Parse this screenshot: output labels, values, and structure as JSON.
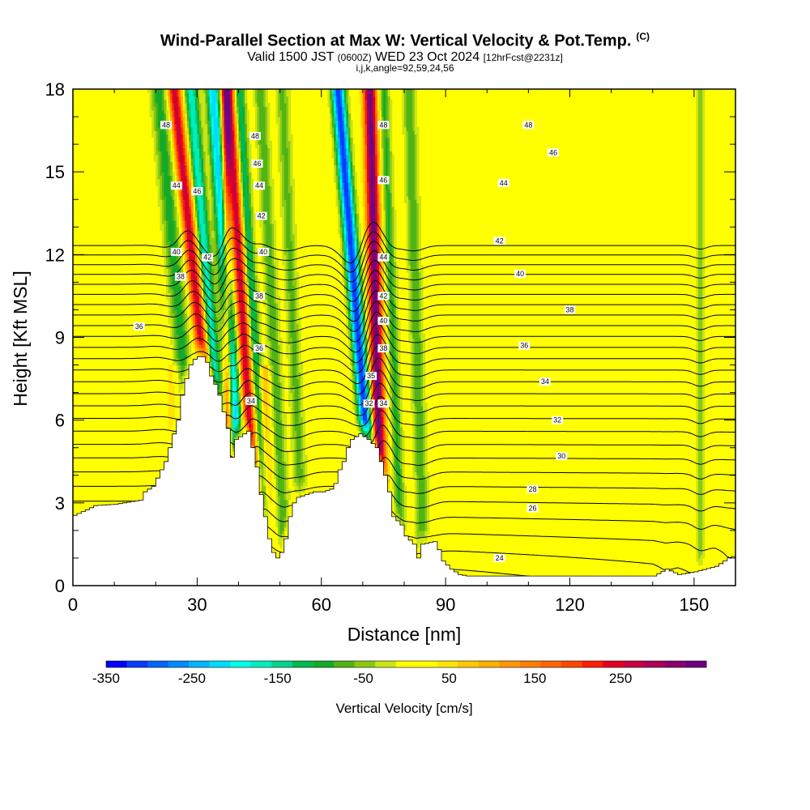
{
  "header": {
    "title": "Wind-Parallel Section at Max W: Vertical Velocity & Pot.Temp.",
    "copyright": "(C)",
    "valid_prefix": "Valid 1500 JST",
    "valid_utc": "(0600Z)",
    "valid_date": "WED 23 Oct 2024",
    "forecast": "[12hrFcst@2231z]",
    "params": "i,j,k,angle=92,59,24,56"
  },
  "chart_data": {
    "type": "heatmap",
    "xlabel": "Distance [nm]",
    "ylabel": "Height [Kft MSL]",
    "xlim": [
      0,
      160
    ],
    "ylim": [
      0,
      18
    ],
    "x_ticks": [
      0,
      30,
      60,
      90,
      120,
      150
    ],
    "y_ticks": [
      0,
      3,
      6,
      9,
      12,
      15,
      18
    ],
    "colorbar": {
      "label": "Vertical Velocity [cm/s]",
      "range": [
        -350,
        350
      ],
      "tick_values": [
        -350,
        -250,
        -150,
        -50,
        50,
        150,
        250
      ],
      "colors": [
        "#0000ff",
        "#0a3cff",
        "#0064ff",
        "#008cff",
        "#00b4ff",
        "#00dcff",
        "#00ffe6",
        "#00eebe",
        "#00d28c",
        "#00b850",
        "#14aa28",
        "#50b414",
        "#8cc814",
        "#c8e614",
        "#ffff00",
        "#ffff00",
        "#ffe600",
        "#ffc800",
        "#ffb000",
        "#ff9600",
        "#ff7d00",
        "#ff6400",
        "#ff4600",
        "#ff1e00",
        "#e6001e",
        "#c80041",
        "#aa005a",
        "#8c006e",
        "#6e0082"
      ]
    },
    "terrain": [
      [
        0,
        2.55
      ],
      [
        3,
        2.75
      ],
      [
        5,
        2.9
      ],
      [
        10,
        2.95
      ],
      [
        16,
        3.1
      ],
      [
        17,
        3.4
      ],
      [
        19,
        3.6
      ],
      [
        21,
        4.2
      ],
      [
        22,
        4.5
      ],
      [
        23,
        5.0
      ],
      [
        24,
        5.5
      ],
      [
        25,
        6.0
      ],
      [
        26,
        6.9
      ],
      [
        27,
        7.5
      ],
      [
        28,
        8.0
      ],
      [
        29.5,
        8.3
      ],
      [
        31,
        8.3
      ],
      [
        32,
        8.1
      ],
      [
        33,
        7.6
      ],
      [
        34,
        7.3
      ],
      [
        35,
        6.9
      ],
      [
        36,
        6.3
      ],
      [
        37,
        5.7
      ],
      [
        37.5,
        5.0
      ],
      [
        38.5,
        4.3
      ],
      [
        39,
        5.3
      ],
      [
        42,
        5.6
      ],
      [
        43,
        5.0
      ],
      [
        44,
        4.3
      ],
      [
        45,
        3.3
      ],
      [
        46,
        2.5
      ],
      [
        47,
        1.7
      ],
      [
        48,
        1.2
      ],
      [
        49,
        1.0
      ],
      [
        50,
        1.2
      ],
      [
        51,
        1.7
      ],
      [
        52,
        2.5
      ],
      [
        53,
        3.0
      ],
      [
        54,
        3.2
      ],
      [
        56,
        3.3
      ],
      [
        58,
        3.4
      ],
      [
        60,
        3.4
      ],
      [
        62,
        3.5
      ],
      [
        63,
        3.7
      ],
      [
        64,
        4.2
      ],
      [
        65,
        4.5
      ],
      [
        66,
        5.0
      ],
      [
        67,
        5.3
      ],
      [
        69,
        5.5
      ],
      [
        71,
        5.3
      ],
      [
        73,
        5.0
      ],
      [
        75,
        4.0
      ],
      [
        76,
        3.4
      ],
      [
        77,
        2.5
      ],
      [
        79,
        2.2
      ],
      [
        80,
        1.8
      ],
      [
        82,
        1.5
      ],
      [
        83,
        1.0
      ],
      [
        84,
        1.5
      ],
      [
        87,
        1.6
      ],
      [
        88,
        1.3
      ],
      [
        89,
        0.9
      ],
      [
        91,
        0.6
      ],
      [
        93,
        0.4
      ],
      [
        95,
        0.35
      ],
      [
        100,
        0.35
      ],
      [
        110,
        0.35
      ],
      [
        120,
        0.35
      ],
      [
        130,
        0.35
      ],
      [
        140,
        0.35
      ],
      [
        143,
        0.6
      ],
      [
        146,
        0.4
      ],
      [
        150,
        0.5
      ],
      [
        155,
        0.7
      ],
      [
        158,
        1.0
      ],
      [
        160,
        1.1
      ]
    ],
    "updrafts": [
      {
        "x": 31.5,
        "slope": 0.72,
        "half_width": 1.6,
        "amplitude": 260,
        "top_height": 18
      },
      {
        "x": 37.5,
        "slope": 0.05,
        "half_width": 1.0,
        "amplitude": 200,
        "top_height": 18
      },
      {
        "x": 43.0,
        "slope": 0.42,
        "half_width": 1.5,
        "amplitude": 260,
        "top_height": 18
      },
      {
        "x": 74.0,
        "slope": 0.17,
        "half_width": 1.6,
        "amplitude": 330,
        "top_height": 18
      },
      {
        "x": 47.0,
        "slope": 0.15,
        "half_width": 1.5,
        "amplitude": 90,
        "top_height": 8
      },
      {
        "x": 24.5,
        "slope": 0.1,
        "half_width": 2.5,
        "amplitude": 40,
        "top_height": 8
      }
    ],
    "downdrafts": [
      {
        "x": 27.0,
        "slope": 0.6,
        "half_width": 2.0,
        "amplitude": -110,
        "top_height": 18
      },
      {
        "x": 34.5,
        "slope": 0.55,
        "half_width": 1.6,
        "amplitude": -190,
        "top_height": 18
      },
      {
        "x": 39.5,
        "slope": 0.45,
        "half_width": 1.6,
        "amplitude": -240,
        "top_height": 18
      },
      {
        "x": 46.5,
        "slope": 0.4,
        "half_width": 1.3,
        "amplitude": -150,
        "top_height": 18
      },
      {
        "x": 51.0,
        "slope": 0.35,
        "half_width": 1.5,
        "amplitude": -90,
        "top_height": 18
      },
      {
        "x": 55.0,
        "slope": 0.3,
        "half_width": 1.5,
        "amplitude": -80,
        "top_height": 18
      },
      {
        "x": 71.0,
        "slope": 0.55,
        "half_width": 1.6,
        "amplitude": -330,
        "top_height": 18
      },
      {
        "x": 79.0,
        "slope": 0.25,
        "half_width": 1.3,
        "amplitude": -100,
        "top_height": 18
      },
      {
        "x": 84.5,
        "slope": 0.2,
        "half_width": 1.5,
        "amplitude": -90,
        "top_height": 18
      },
      {
        "x": 151.5,
        "slope": 0.0,
        "half_width": 1.0,
        "amplitude": -60,
        "top_height": 18
      }
    ],
    "isentropes": {
      "levels": [
        23,
        24,
        25,
        26,
        27,
        28,
        29,
        30,
        31,
        32,
        33,
        34,
        35,
        36,
        37,
        38,
        39,
        40,
        41,
        42,
        43,
        44,
        45,
        46,
        47,
        48,
        49,
        50
      ],
      "labels": [
        {
          "text": "24",
          "x": 103,
          "y": 1.0
        },
        {
          "text": "26",
          "x": 111,
          "y": 2.8
        },
        {
          "text": "28",
          "x": 111,
          "y": 3.5
        },
        {
          "text": "30",
          "x": 118,
          "y": 4.7
        },
        {
          "text": "32",
          "x": 117,
          "y": 6.0
        },
        {
          "text": "34",
          "x": 114,
          "y": 7.4
        },
        {
          "text": "36",
          "x": 109,
          "y": 8.7
        },
        {
          "text": "38",
          "x": 120,
          "y": 10.0
        },
        {
          "text": "40",
          "x": 108,
          "y": 11.3
        },
        {
          "text": "42",
          "x": 103,
          "y": 12.5
        },
        {
          "text": "44",
          "x": 104,
          "y": 14.6
        },
        {
          "text": "46",
          "x": 116,
          "y": 15.7
        },
        {
          "text": "48",
          "x": 110,
          "y": 16.7
        },
        {
          "text": "36",
          "x": 16,
          "y": 9.4
        },
        {
          "text": "38",
          "x": 26,
          "y": 11.2
        },
        {
          "text": "40",
          "x": 25,
          "y": 12.1
        },
        {
          "text": "42",
          "x": 32.5,
          "y": 11.9
        },
        {
          "text": "44",
          "x": 25,
          "y": 14.5
        },
        {
          "text": "46",
          "x": 30,
          "y": 14.3
        },
        {
          "text": "48",
          "x": 22.5,
          "y": 16.7
        },
        {
          "text": "34",
          "x": 43,
          "y": 6.7
        },
        {
          "text": "36",
          "x": 45,
          "y": 8.6
        },
        {
          "text": "38",
          "x": 45,
          "y": 10.5
        },
        {
          "text": "40",
          "x": 46,
          "y": 12.1
        },
        {
          "text": "42",
          "x": 45.5,
          "y": 13.4
        },
        {
          "text": "44",
          "x": 45,
          "y": 14.5
        },
        {
          "text": "46",
          "x": 44.5,
          "y": 15.3
        },
        {
          "text": "48",
          "x": 44,
          "y": 16.3
        },
        {
          "text": "32",
          "x": 71.5,
          "y": 6.6
        },
        {
          "text": "34",
          "x": 75,
          "y": 6.6
        },
        {
          "text": "35",
          "x": 72,
          "y": 7.6
        },
        {
          "text": "38",
          "x": 75,
          "y": 8.6
        },
        {
          "text": "40",
          "x": 75,
          "y": 9.6
        },
        {
          "text": "42",
          "x": 75,
          "y": 10.5
        },
        {
          "text": "44",
          "x": 75,
          "y": 11.9
        },
        {
          "text": "46",
          "x": 75,
          "y": 14.7
        },
        {
          "text": "48",
          "x": 75,
          "y": 16.7
        }
      ]
    }
  }
}
